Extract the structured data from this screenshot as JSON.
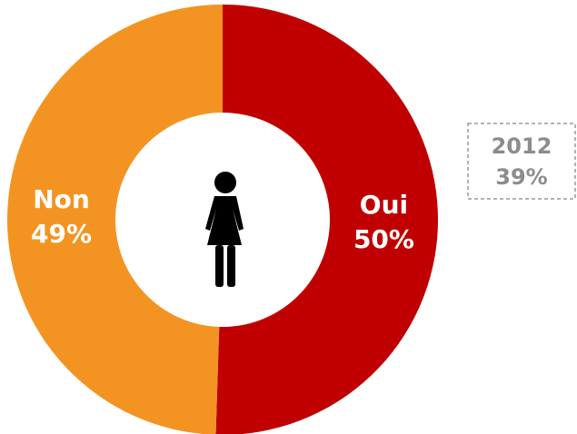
{
  "chart_data": {
    "type": "pie",
    "donut": true,
    "categories": [
      "Oui",
      "Non"
    ],
    "values": [
      50,
      49
    ],
    "value_labels": [
      "50%",
      "49%"
    ],
    "colors": [
      "#c00000",
      "#f39422"
    ],
    "annotation": [
      "2012",
      "39%"
    ]
  }
}
